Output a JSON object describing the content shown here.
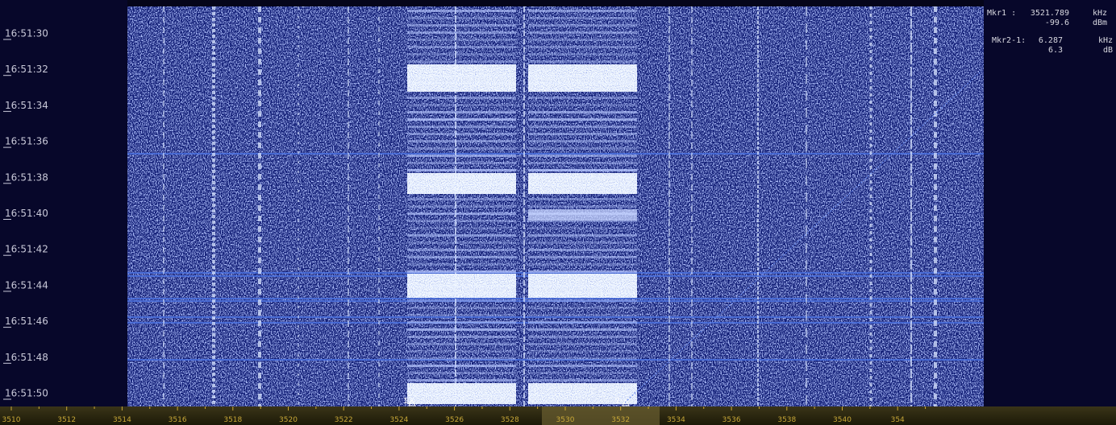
{
  "time_labels": [
    "16:51:30",
    "16:51:32",
    "16:51:34",
    "16:51:36",
    "16:51:38",
    "16:51:40",
    "16:51:42",
    "16:51:44",
    "16:51:46",
    "16:51:48",
    "16:51:50"
  ],
  "frequency_labels": [
    "3510",
    "3512",
    "3514",
    "3516",
    "3518",
    "3520",
    "3522",
    "3524",
    "3526",
    "3528",
    "3530",
    "3532",
    "3534",
    "3536",
    "3538",
    "3540",
    "354"
  ],
  "markers": [
    "1",
    "2"
  ],
  "readout": {
    "mkr1": {
      "label": "Mkr1 :",
      "freq": "3521.789",
      "freq_unit": "kHz",
      "level": "-99.6",
      "level_unit": "dBm"
    },
    "delta": {
      "label": "Mkr2-1:",
      "freq": "6.287",
      "freq_unit": "kHz",
      "level": "6.3",
      "level_unit": "dB"
    }
  }
}
